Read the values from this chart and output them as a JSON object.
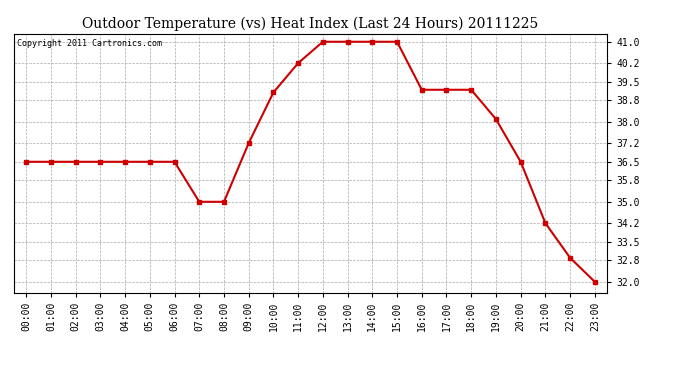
{
  "title": "Outdoor Temperature (vs) Heat Index (Last 24 Hours) 20111225",
  "copyright_text": "Copyright 2011 Cartronics.com",
  "x_labels": [
    "00:00",
    "01:00",
    "02:00",
    "03:00",
    "04:00",
    "05:00",
    "06:00",
    "07:00",
    "08:00",
    "09:00",
    "10:00",
    "11:00",
    "12:00",
    "13:00",
    "14:00",
    "15:00",
    "16:00",
    "17:00",
    "18:00",
    "19:00",
    "20:00",
    "21:00",
    "22:00",
    "23:00"
  ],
  "y_values": [
    36.5,
    36.5,
    36.5,
    36.5,
    36.5,
    36.5,
    36.5,
    35.0,
    35.0,
    37.2,
    39.1,
    40.2,
    41.0,
    41.0,
    41.0,
    41.0,
    39.2,
    39.2,
    39.2,
    38.1,
    36.5,
    34.2,
    32.9,
    32.0
  ],
  "line_color": "#cc0000",
  "marker": "s",
  "marker_size": 2.5,
  "line_width": 1.5,
  "ylim_min": 31.6,
  "ylim_max": 41.3,
  "y_ticks": [
    32.0,
    32.8,
    33.5,
    34.2,
    35.0,
    35.8,
    36.5,
    37.2,
    38.0,
    38.8,
    39.5,
    40.2,
    41.0
  ],
  "bg_color": "#ffffff",
  "plot_bg_color": "#ffffff",
  "grid_color": "#aaaaaa",
  "title_fontsize": 10,
  "tick_fontsize": 7,
  "copyright_fontsize": 6
}
